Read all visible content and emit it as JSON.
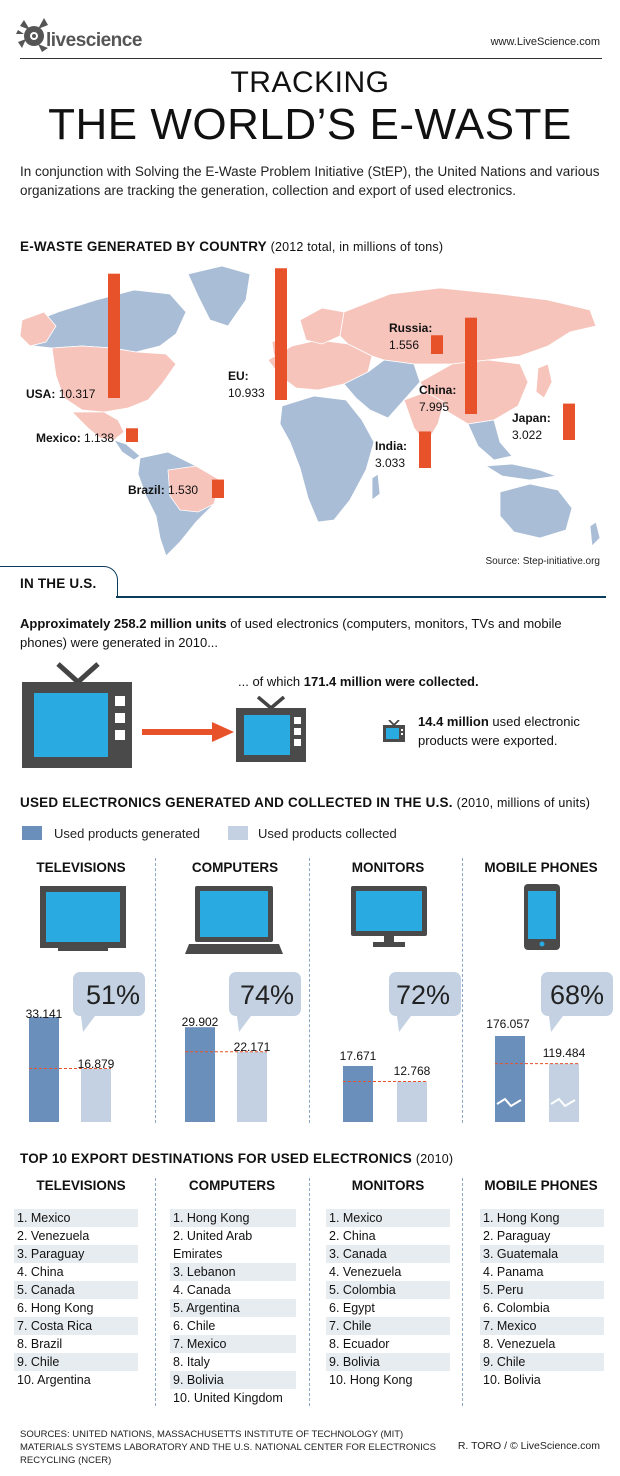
{
  "header": {
    "logo_text": "livescience",
    "site_url": "www.LiveScience.com",
    "title_line1": "TRACKING",
    "title_line2": "THE WORLD’S E-WASTE",
    "intro": "In conjunction with Solving the E-Waste Problem Initiative (StEP), the United Nations and various organizations are tracking the generation, collection and export of used electronics."
  },
  "map_section": {
    "title": "E-WASTE GENERATED BY COUNTRY",
    "subtitle": "(2012 total, in millions of tons)",
    "source": "Source: Step-initiative.org",
    "colors": {
      "bar": "#e8522a",
      "highlight_land": "#f6c4bb",
      "other_land": "#a9bdd6"
    }
  },
  "us_section": {
    "tab_label": "IN THE U.S.",
    "para_bold": "Approximately 258.2 million units",
    "para_rest": " of used electronics (computers, monitors, TVs and mobile phones) were generated in 2010...",
    "collected_pre": "... of which ",
    "collected_bold": "171.4 million were collected.",
    "exported_bold": "14.4 million",
    "exported_rest": " used electronic products were exported."
  },
  "bars_section": {
    "title": "USED ELECTRONICS GENERATED AND COLLECTED IN THE U.S.",
    "subtitle": "(2010, millions of units)",
    "legend_generated": "Used products generated",
    "legend_collected": "Used products collected",
    "colors": {
      "generated": "#6a8fbb",
      "collected": "#c3d1e2",
      "bubble": "#c3d1e2"
    }
  },
  "chart_data": [
    {
      "type": "bar",
      "title": "E-WASTE GENERATED BY COUNTRY",
      "subtitle": "(2012 total, in millions of tons)",
      "categories": [
        "USA",
        "Mexico",
        "Brazil",
        "EU",
        "Russia",
        "China",
        "India",
        "Japan"
      ],
      "values": [
        10.317,
        1.138,
        1.53,
        10.933,
        1.556,
        7.995,
        3.033,
        3.022
      ],
      "labels": [
        "10.317",
        "1.138",
        "1.530",
        "10.933",
        "1.556",
        "7.995",
        "3.033",
        "3.022"
      ]
    },
    {
      "type": "bar",
      "title": "USED ELECTRONICS GENERATED AND COLLECTED IN THE U.S.",
      "subtitle": "(2010, millions of units)",
      "categories": [
        "TELEVISIONS",
        "COMPUTERS",
        "MONITORS",
        "MOBILE PHONES"
      ],
      "series": [
        {
          "name": "Used products generated",
          "values": [
            33.141,
            29.902,
            17.671,
            176.057
          ],
          "labels": [
            "33.141",
            "29.902",
            "17.671",
            "176.057"
          ]
        },
        {
          "name": "Used products collected",
          "values": [
            16.879,
            22.171,
            12.768,
            119.484
          ],
          "labels": [
            "16.879",
            "22.171",
            "12.768",
            "119.484"
          ]
        }
      ],
      "collection_rate_labels": [
        "51%",
        "74%",
        "72%",
        "68%"
      ],
      "axis_break": [
        "MOBILE PHONES"
      ]
    }
  ],
  "exports_section": {
    "title": "TOP 10 EXPORT DESTINATIONS FOR USED ELECTRONICS",
    "subtitle": "(2010)",
    "columns": [
      {
        "title": "TELEVISIONS",
        "items": [
          "1. Mexico",
          "2. Venezuela",
          "3. Paraguay",
          "4. China",
          "5. Canada",
          "6. Hong Kong",
          "7. Costa Rica",
          "8. Brazil",
          "9. Chile",
          "10. Argentina"
        ]
      },
      {
        "title": "COMPUTERS",
        "items": [
          "1. Hong Kong",
          "2. United Arab Emirates",
          "3. Lebanon",
          "4. Canada",
          "5. Argentina",
          "6. Chile",
          "7. Mexico",
          "8. Italy",
          "9. Bolivia",
          "10. United Kingdom"
        ]
      },
      {
        "title": "MONITORS",
        "items": [
          "1. Mexico",
          "2. China",
          "3. Canada",
          "4. Venezuela",
          "5. Colombia",
          "6. Egypt",
          "7. Chile",
          "8. Ecuador",
          "9. Bolivia",
          "10. Hong Kong"
        ]
      },
      {
        "title": "MOBILE PHONES",
        "items": [
          "1. Hong Kong",
          "2. Paraguay",
          "3. Guatemala",
          "4. Panama",
          "5. Peru",
          "6. Colombia",
          "7. Mexico",
          "8. Venezuela",
          "9. Chile",
          "10. Bolivia"
        ]
      }
    ]
  },
  "footer": {
    "sources": "SOURCES: UNITED NATIONS, MASSACHUSETTS INSTITUTE OF TECHNOLOGY (MIT) MATERIALS SYSTEMS LABORATORY AND THE U.S. NATIONAL CENTER FOR ELECTRONICS RECYCLING (NCER)",
    "credit": "R. TORO / © LiveScience.com"
  }
}
